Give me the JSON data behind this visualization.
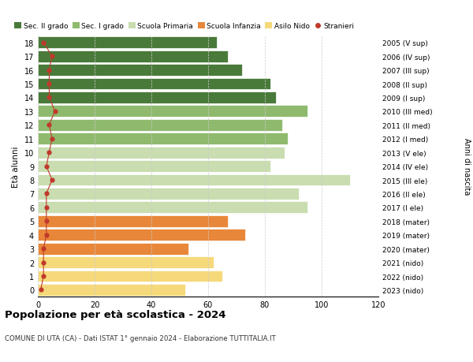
{
  "ages": [
    0,
    1,
    2,
    3,
    4,
    5,
    6,
    7,
    8,
    9,
    10,
    11,
    12,
    13,
    14,
    15,
    16,
    17,
    18
  ],
  "values": [
    52,
    65,
    62,
    53,
    73,
    67,
    95,
    92,
    110,
    82,
    87,
    88,
    86,
    95,
    84,
    82,
    72,
    67,
    63
  ],
  "right_labels": [
    "2023 (nido)",
    "2022 (nido)",
    "2021 (nido)",
    "2020 (mater)",
    "2019 (mater)",
    "2018 (mater)",
    "2017 (I ele)",
    "2016 (II ele)",
    "2015 (III ele)",
    "2014 (IV ele)",
    "2013 (V ele)",
    "2012 (I med)",
    "2011 (II med)",
    "2010 (III med)",
    "2009 (I sup)",
    "2008 (II sup)",
    "2007 (III sup)",
    "2006 (IV sup)",
    "2005 (V sup)"
  ],
  "bar_colors": [
    "#f5d97a",
    "#f5d97a",
    "#f5d97a",
    "#e8873a",
    "#e8873a",
    "#e8873a",
    "#c9ddb0",
    "#c9ddb0",
    "#c9ddb0",
    "#c9ddb0",
    "#c9ddb0",
    "#8fba6e",
    "#8fba6e",
    "#8fba6e",
    "#4a7a3a",
    "#4a7a3a",
    "#4a7a3a",
    "#4a7a3a",
    "#4a7a3a"
  ],
  "stranieri_values": [
    1,
    2,
    2,
    2,
    3,
    3,
    3,
    3,
    5,
    3,
    4,
    5,
    4,
    6,
    4,
    4,
    4,
    5,
    2
  ],
  "legend_labels": [
    "Sec. II grado",
    "Sec. I grado",
    "Scuola Primaria",
    "Scuola Infanzia",
    "Asilo Nido",
    "Stranieri"
  ],
  "legend_colors": [
    "#4a7a3a",
    "#8fba6e",
    "#c9ddb0",
    "#e8873a",
    "#f5d97a",
    "#c0392b"
  ],
  "ylabel": "Età alunni",
  "right_ylabel": "Anni di nascita",
  "title": "Popolazione per età scolastica - 2024",
  "subtitle": "COMUNE DI UTA (CA) - Dati ISTAT 1° gennaio 2024 - Elaborazione TUTTITALIA.IT",
  "xlim": [
    0,
    120
  ],
  "xticks": [
    0,
    20,
    40,
    60,
    80,
    100,
    120
  ],
  "bar_height": 0.85,
  "background_color": "#ffffff",
  "grid_color": "#cccccc"
}
